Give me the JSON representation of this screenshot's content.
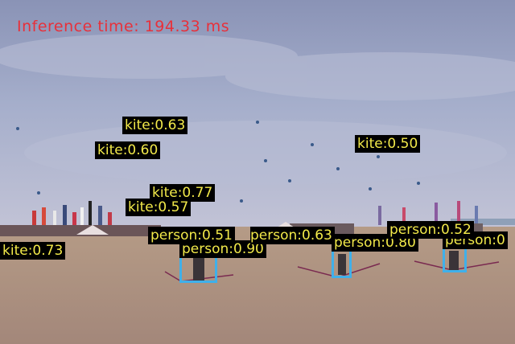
{
  "inference_text": "Inference time: 194.33 ms",
  "colors": {
    "label_text": "#f2e94a",
    "label_background": "#000000",
    "box_stroke": "#3fb0ea",
    "inference_text": "#e8303a"
  },
  "detections": [
    {
      "label": "kite:0.63"
    },
    {
      "label": "kite:0.60"
    },
    {
      "label": "kite:0.50"
    },
    {
      "label": "kite:0.77"
    },
    {
      "label": "kite:0.57"
    },
    {
      "label": "kite:0.73"
    },
    {
      "label": "person:0.51"
    },
    {
      "label": "person:0.63"
    },
    {
      "label": "person:0.90"
    },
    {
      "label": "person:0.80"
    },
    {
      "label": "person:0.52"
    },
    {
      "label": "person:0"
    }
  ]
}
